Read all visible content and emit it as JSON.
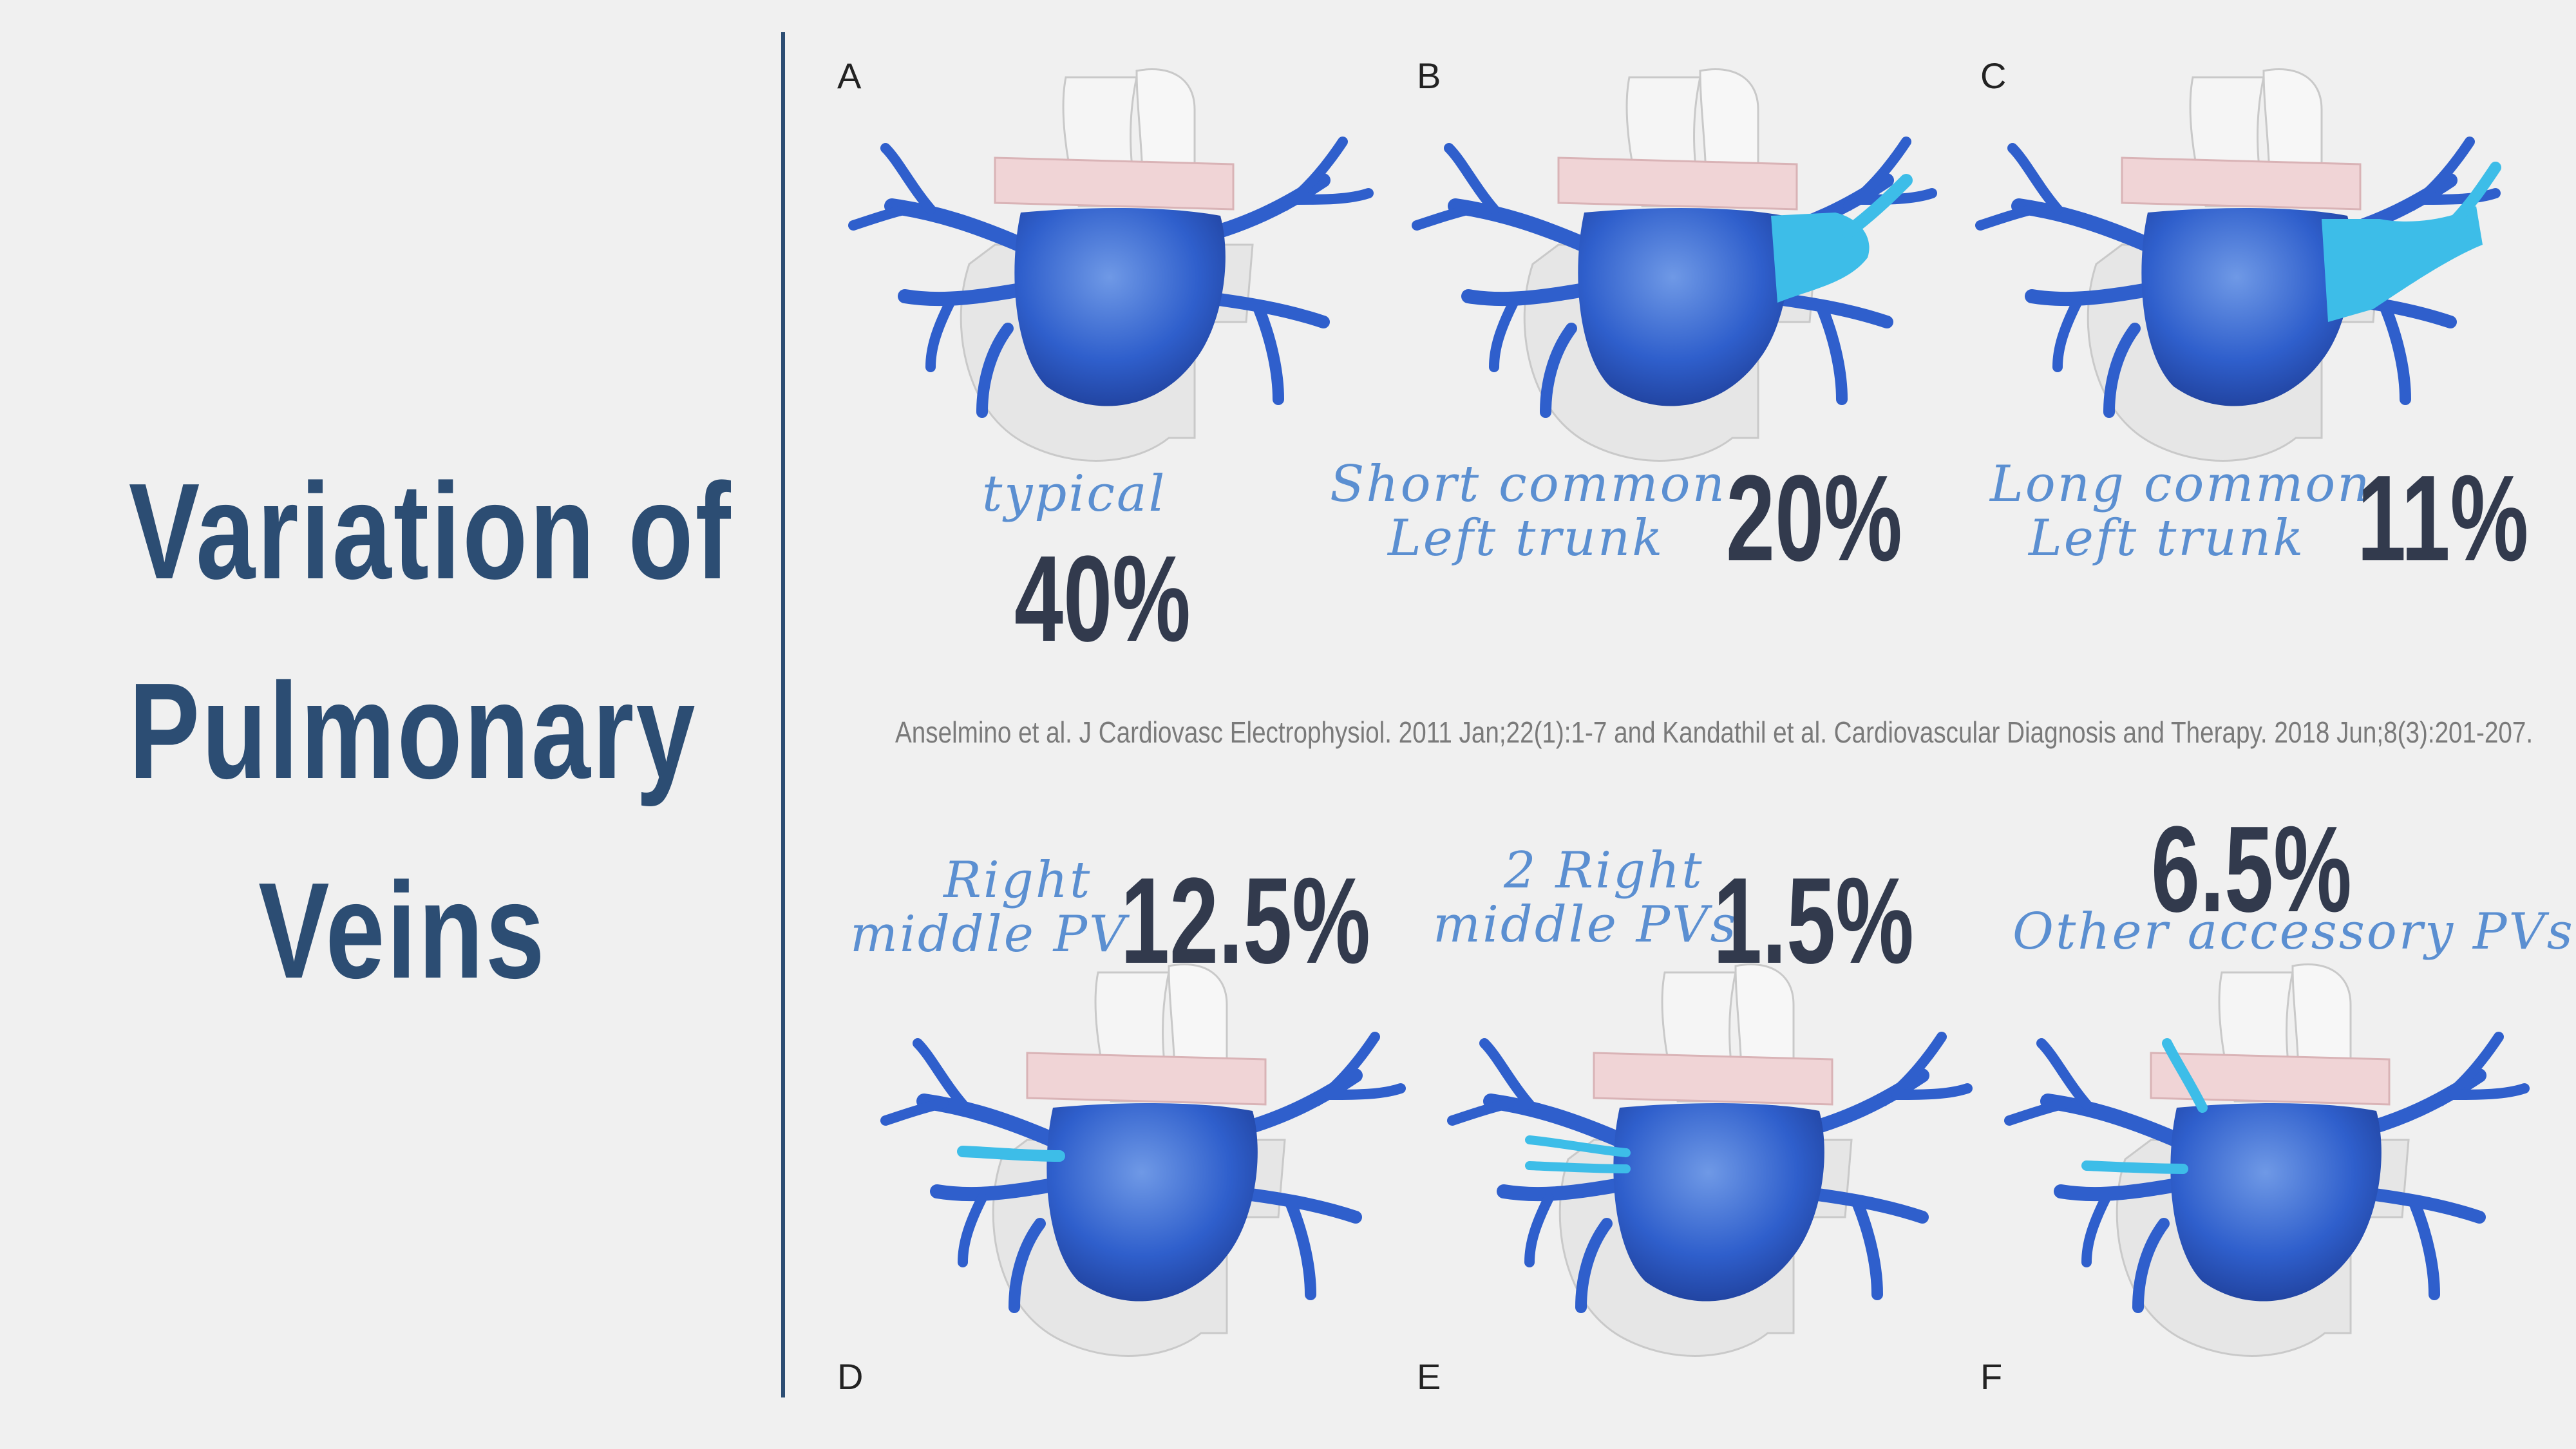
{
  "title": {
    "line1": "Variation of",
    "line2": "Pulmonary",
    "line3": "Veins"
  },
  "citation": "Anselmino et al. J Cardiovasc Electrophysiol. 2011 Jan;22(1):1-7 and Kandathil et al. Cardiovascular Diagnosis and Therapy. 2018 Jun;8(3):201-207.",
  "colors": {
    "title": "#2c4d73",
    "percent": "#323a4d",
    "label": "#5b8fd1",
    "vein": "#2f5fcc",
    "vein_highlight": "#3dbde8",
    "aorta_band": "#f0d4d6",
    "heart": "#e6e6e6"
  },
  "panels": [
    {
      "letter": "A",
      "label_line1": "typical",
      "label_line2": "",
      "percent": "40%"
    },
    {
      "letter": "B",
      "label_line1": "Short common",
      "label_line2": "Left trunk",
      "percent": "20%"
    },
    {
      "letter": "C",
      "label_line1": "Long common",
      "label_line2": "Left trunk",
      "percent": "11%"
    },
    {
      "letter": "D",
      "label_line1": "Right",
      "label_line2": "middle PV",
      "percent": "12.5%"
    },
    {
      "letter": "E",
      "label_line1": "2 Right",
      "label_line2": "middle PVs",
      "percent": "1.5%"
    },
    {
      "letter": "F",
      "label_line1": "Other accessory PVs",
      "label_line2": "",
      "percent": "6.5%"
    }
  ]
}
